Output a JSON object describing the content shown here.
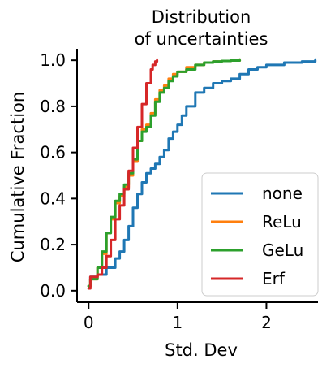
{
  "chart_data": {
    "type": "line",
    "title_lines": [
      "Distribution",
      "of uncertainties"
    ],
    "xlabel": "Std. Dev",
    "ylabel": "Cumulative Fraction",
    "xlim": [
      -0.13,
      2.58
    ],
    "ylim": [
      -0.05,
      1.05
    ],
    "xticks": [
      0,
      1,
      2
    ],
    "xtick_labels": [
      "0",
      "1",
      "2"
    ],
    "yticks": [
      0.0,
      0.2,
      0.4,
      0.6,
      0.8,
      1.0
    ],
    "ytick_labels": [
      "0.0",
      "0.2",
      "0.4",
      "0.6",
      "0.8",
      "1.0"
    ],
    "grid": false,
    "legend_position": "lower-right",
    "series": [
      {
        "name": "none",
        "color": "#1f77b4",
        "x": [
          0.0,
          0.02,
          0.1,
          0.2,
          0.3,
          0.35,
          0.4,
          0.45,
          0.5,
          0.55,
          0.6,
          0.65,
          0.7,
          0.75,
          0.8,
          0.85,
          0.9,
          0.95,
          1.0,
          1.05,
          1.1,
          1.2,
          1.3,
          1.4,
          1.5,
          1.6,
          1.7,
          1.8,
          1.9,
          2.0,
          2.2,
          2.4,
          2.55
        ],
        "y": [
          0.02,
          0.06,
          0.07,
          0.1,
          0.14,
          0.17,
          0.22,
          0.28,
          0.36,
          0.42,
          0.47,
          0.51,
          0.53,
          0.55,
          0.58,
          0.61,
          0.66,
          0.69,
          0.72,
          0.76,
          0.8,
          0.86,
          0.88,
          0.9,
          0.91,
          0.92,
          0.94,
          0.96,
          0.97,
          0.98,
          0.99,
          0.995,
          1.0
        ]
      },
      {
        "name": "ReLu",
        "color": "#ff7f0e",
        "x": [
          0.0,
          0.02,
          0.1,
          0.15,
          0.2,
          0.25,
          0.3,
          0.35,
          0.4,
          0.45,
          0.5,
          0.55,
          0.6,
          0.65,
          0.7,
          0.75,
          0.8,
          0.85,
          0.9,
          0.95,
          1.0,
          1.1,
          1.2,
          1.3,
          1.4,
          1.5,
          1.6,
          1.7
        ],
        "y": [
          0.02,
          0.05,
          0.1,
          0.16,
          0.25,
          0.31,
          0.38,
          0.41,
          0.45,
          0.5,
          0.56,
          0.65,
          0.7,
          0.72,
          0.77,
          0.83,
          0.87,
          0.89,
          0.92,
          0.94,
          0.95,
          0.97,
          0.98,
          0.99,
          0.995,
          0.997,
          0.999,
          1.0
        ]
      },
      {
        "name": "GeLu",
        "color": "#2ca02c",
        "x": [
          0.0,
          0.02,
          0.1,
          0.15,
          0.2,
          0.25,
          0.3,
          0.35,
          0.4,
          0.45,
          0.5,
          0.55,
          0.6,
          0.65,
          0.7,
          0.75,
          0.8,
          0.85,
          0.9,
          0.95,
          1.0,
          1.1,
          1.2,
          1.3,
          1.4,
          1.5,
          1.6,
          1.7
        ],
        "y": [
          0.02,
          0.05,
          0.1,
          0.17,
          0.25,
          0.32,
          0.39,
          0.42,
          0.46,
          0.51,
          0.57,
          0.65,
          0.69,
          0.71,
          0.76,
          0.82,
          0.86,
          0.88,
          0.91,
          0.93,
          0.95,
          0.96,
          0.98,
          0.99,
          0.995,
          0.997,
          0.999,
          1.0
        ]
      },
      {
        "name": "Erf",
        "color": "#d62728",
        "x": [
          0.0,
          0.02,
          0.1,
          0.15,
          0.2,
          0.25,
          0.3,
          0.35,
          0.4,
          0.45,
          0.5,
          0.55,
          0.6,
          0.65,
          0.7,
          0.72,
          0.75,
          0.77
        ],
        "y": [
          0.01,
          0.06,
          0.07,
          0.1,
          0.15,
          0.22,
          0.31,
          0.37,
          0.44,
          0.52,
          0.62,
          0.71,
          0.81,
          0.9,
          0.96,
          0.98,
          0.995,
          1.0
        ]
      }
    ]
  }
}
